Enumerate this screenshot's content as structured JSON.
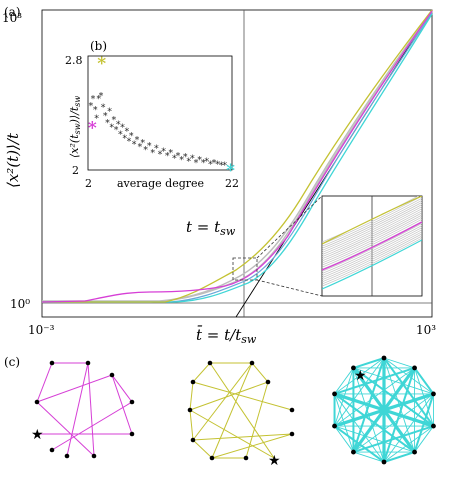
{
  "panels": {
    "a": "(a)",
    "b": "(b)",
    "c": "(c)"
  },
  "main_plot": {
    "y_label": "⟨x²(t)⟩/t",
    "x_label": "t̄ = t/t",
    "x_label_sub": "sw",
    "y_ticks": [
      "10⁰",
      "10³"
    ],
    "x_ticks": [
      "10⁻³",
      "10³"
    ],
    "annotation": "t = t",
    "annotation_sub": "sw",
    "colors": {
      "magenta": "#d63fd6",
      "olive": "#c4c232",
      "cyan": "#3fd6d6",
      "blue": "#6aa6d8",
      "gray": "#bdbdbd"
    }
  },
  "inset": {
    "y_label": "⟨x²(t",
    "y_label_sub": "sw",
    "y_label_tail": ")⟩/t",
    "y_label_tail_sub": "sw",
    "x_label": "average degree",
    "x_ticks": [
      "2",
      "22"
    ],
    "y_ticks": [
      "2.8",
      "2"
    ]
  },
  "chart_data": {
    "type": "scatter",
    "x_label": "average degree",
    "y_label": "⟨x²(t_sw)⟩/t_sw",
    "xlim": [
      2,
      22
    ],
    "ylim": [
      2,
      2.8
    ],
    "highlight_points": [
      {
        "color": "#d63fd6",
        "x": 2.6,
        "y": 2.3
      },
      {
        "color": "#c4c232",
        "x": 3.9,
        "y": 2.75
      },
      {
        "color": "#3fd6d6",
        "x": 21.8,
        "y": 2.0
      }
    ],
    "points": [
      {
        "x": 2.4,
        "y": 2.45
      },
      {
        "x": 2.7,
        "y": 2.5
      },
      {
        "x": 3.0,
        "y": 2.42
      },
      {
        "x": 3.2,
        "y": 2.36
      },
      {
        "x": 3.5,
        "y": 2.5
      },
      {
        "x": 3.8,
        "y": 2.52
      },
      {
        "x": 4.1,
        "y": 2.44
      },
      {
        "x": 4.4,
        "y": 2.38
      },
      {
        "x": 4.7,
        "y": 2.33
      },
      {
        "x": 5.0,
        "y": 2.41
      },
      {
        "x": 5.3,
        "y": 2.3
      },
      {
        "x": 5.6,
        "y": 2.35
      },
      {
        "x": 5.9,
        "y": 2.28
      },
      {
        "x": 6.2,
        "y": 2.32
      },
      {
        "x": 6.5,
        "y": 2.25
      },
      {
        "x": 6.8,
        "y": 2.3
      },
      {
        "x": 7.1,
        "y": 2.22
      },
      {
        "x": 7.4,
        "y": 2.27
      },
      {
        "x": 7.7,
        "y": 2.2
      },
      {
        "x": 8.0,
        "y": 2.24
      },
      {
        "x": 8.4,
        "y": 2.18
      },
      {
        "x": 8.8,
        "y": 2.21
      },
      {
        "x": 9.2,
        "y": 2.16
      },
      {
        "x": 9.6,
        "y": 2.19
      },
      {
        "x": 10.0,
        "y": 2.14
      },
      {
        "x": 10.5,
        "y": 2.17
      },
      {
        "x": 11.0,
        "y": 2.12
      },
      {
        "x": 11.5,
        "y": 2.15
      },
      {
        "x": 12.0,
        "y": 2.11
      },
      {
        "x": 12.5,
        "y": 2.13
      },
      {
        "x": 13.0,
        "y": 2.1
      },
      {
        "x": 13.5,
        "y": 2.12
      },
      {
        "x": 14.0,
        "y": 2.08
      },
      {
        "x": 14.5,
        "y": 2.1
      },
      {
        "x": 15.0,
        "y": 2.07
      },
      {
        "x": 15.5,
        "y": 2.09
      },
      {
        "x": 16.0,
        "y": 2.06
      },
      {
        "x": 16.5,
        "y": 2.08
      },
      {
        "x": 17.0,
        "y": 2.05
      },
      {
        "x": 17.5,
        "y": 2.07
      },
      {
        "x": 18.0,
        "y": 2.05
      },
      {
        "x": 18.5,
        "y": 2.06
      },
      {
        "x": 19.0,
        "y": 2.04
      },
      {
        "x": 19.5,
        "y": 2.05
      },
      {
        "x": 20.0,
        "y": 2.04
      },
      {
        "x": 20.5,
        "y": 2.03
      },
      {
        "x": 21.0,
        "y": 2.03
      }
    ]
  }
}
